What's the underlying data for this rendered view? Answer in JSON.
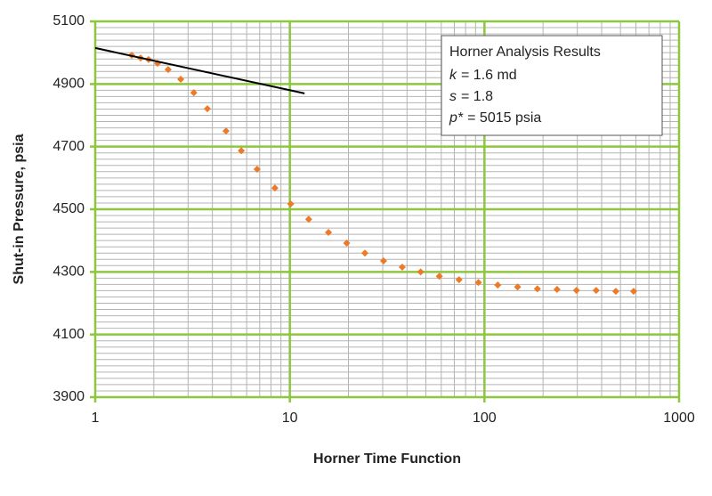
{
  "chart_data": {
    "type": "scatter",
    "xlabel": "Horner Time Function",
    "ylabel": "Shut-in Pressure, psia",
    "xscale": "log",
    "xlim": [
      1,
      1000
    ],
    "xticks": [
      1,
      10,
      100,
      1000
    ],
    "xminor": [
      2,
      3,
      4,
      5,
      6,
      7,
      8,
      9,
      20,
      30,
      40,
      50,
      60,
      70,
      80,
      90,
      200,
      300,
      400,
      500,
      600,
      700,
      800,
      900
    ],
    "ylim": [
      3900,
      5100
    ],
    "yticks": [
      3900,
      4100,
      4300,
      4500,
      4700,
      4900,
      5100
    ],
    "yminor": [
      3920,
      3940,
      3960,
      3980,
      4000,
      4020,
      4040,
      4060,
      4080,
      4120,
      4140,
      4160,
      4180,
      4200,
      4220,
      4240,
      4260,
      4280,
      4320,
      4340,
      4360,
      4380,
      4400,
      4420,
      4440,
      4460,
      4480,
      4520,
      4540,
      4560,
      4580,
      4600,
      4620,
      4640,
      4660,
      4680,
      4720,
      4740,
      4760,
      4780,
      4800,
      4820,
      4840,
      4860,
      4880,
      4920,
      4940,
      4960,
      4980,
      5000,
      5020,
      5040,
      5060,
      5080
    ],
    "grid": true,
    "grid_color": "#8dc63f",
    "minor_grid_color": "#b4b4b4",
    "series": [
      {
        "mode": "markers",
        "color": "#ec7a27",
        "x": [
          1.54,
          1.71,
          1.88,
          2.09,
          2.37,
          2.75,
          3.21,
          3.77,
          4.7,
          5.63,
          6.79,
          8.38,
          10.1,
          12.5,
          15.8,
          19.6,
          24.3,
          30.3,
          37.8,
          47.0,
          58.6,
          74.0,
          93.1,
          117,
          148,
          187,
          236,
          297,
          375,
          473,
          584
        ],
        "y": [
          4992,
          4983,
          4978,
          4966,
          4946,
          4915,
          4872,
          4821,
          4750,
          4687,
          4628,
          4568,
          4517,
          4468,
          4426,
          4392,
          4360,
          4335,
          4315,
          4300,
          4286,
          4275,
          4266,
          4258,
          4252,
          4246,
          4244,
          4241,
          4241,
          4238,
          4238
        ]
      },
      {
        "mode": "line",
        "color": "#000000",
        "x": [
          1,
          11.9
        ],
        "y": [
          5015,
          4870
        ]
      }
    ],
    "annotation": {
      "title": "Horner Analysis Results",
      "lines": [
        {
          "symbol": "k",
          "text": "= 1.6 md"
        },
        {
          "symbol": "s",
          "text": "= 1.8"
        },
        {
          "symbol": "p*",
          "text": "= 5015 psia"
        }
      ]
    }
  }
}
